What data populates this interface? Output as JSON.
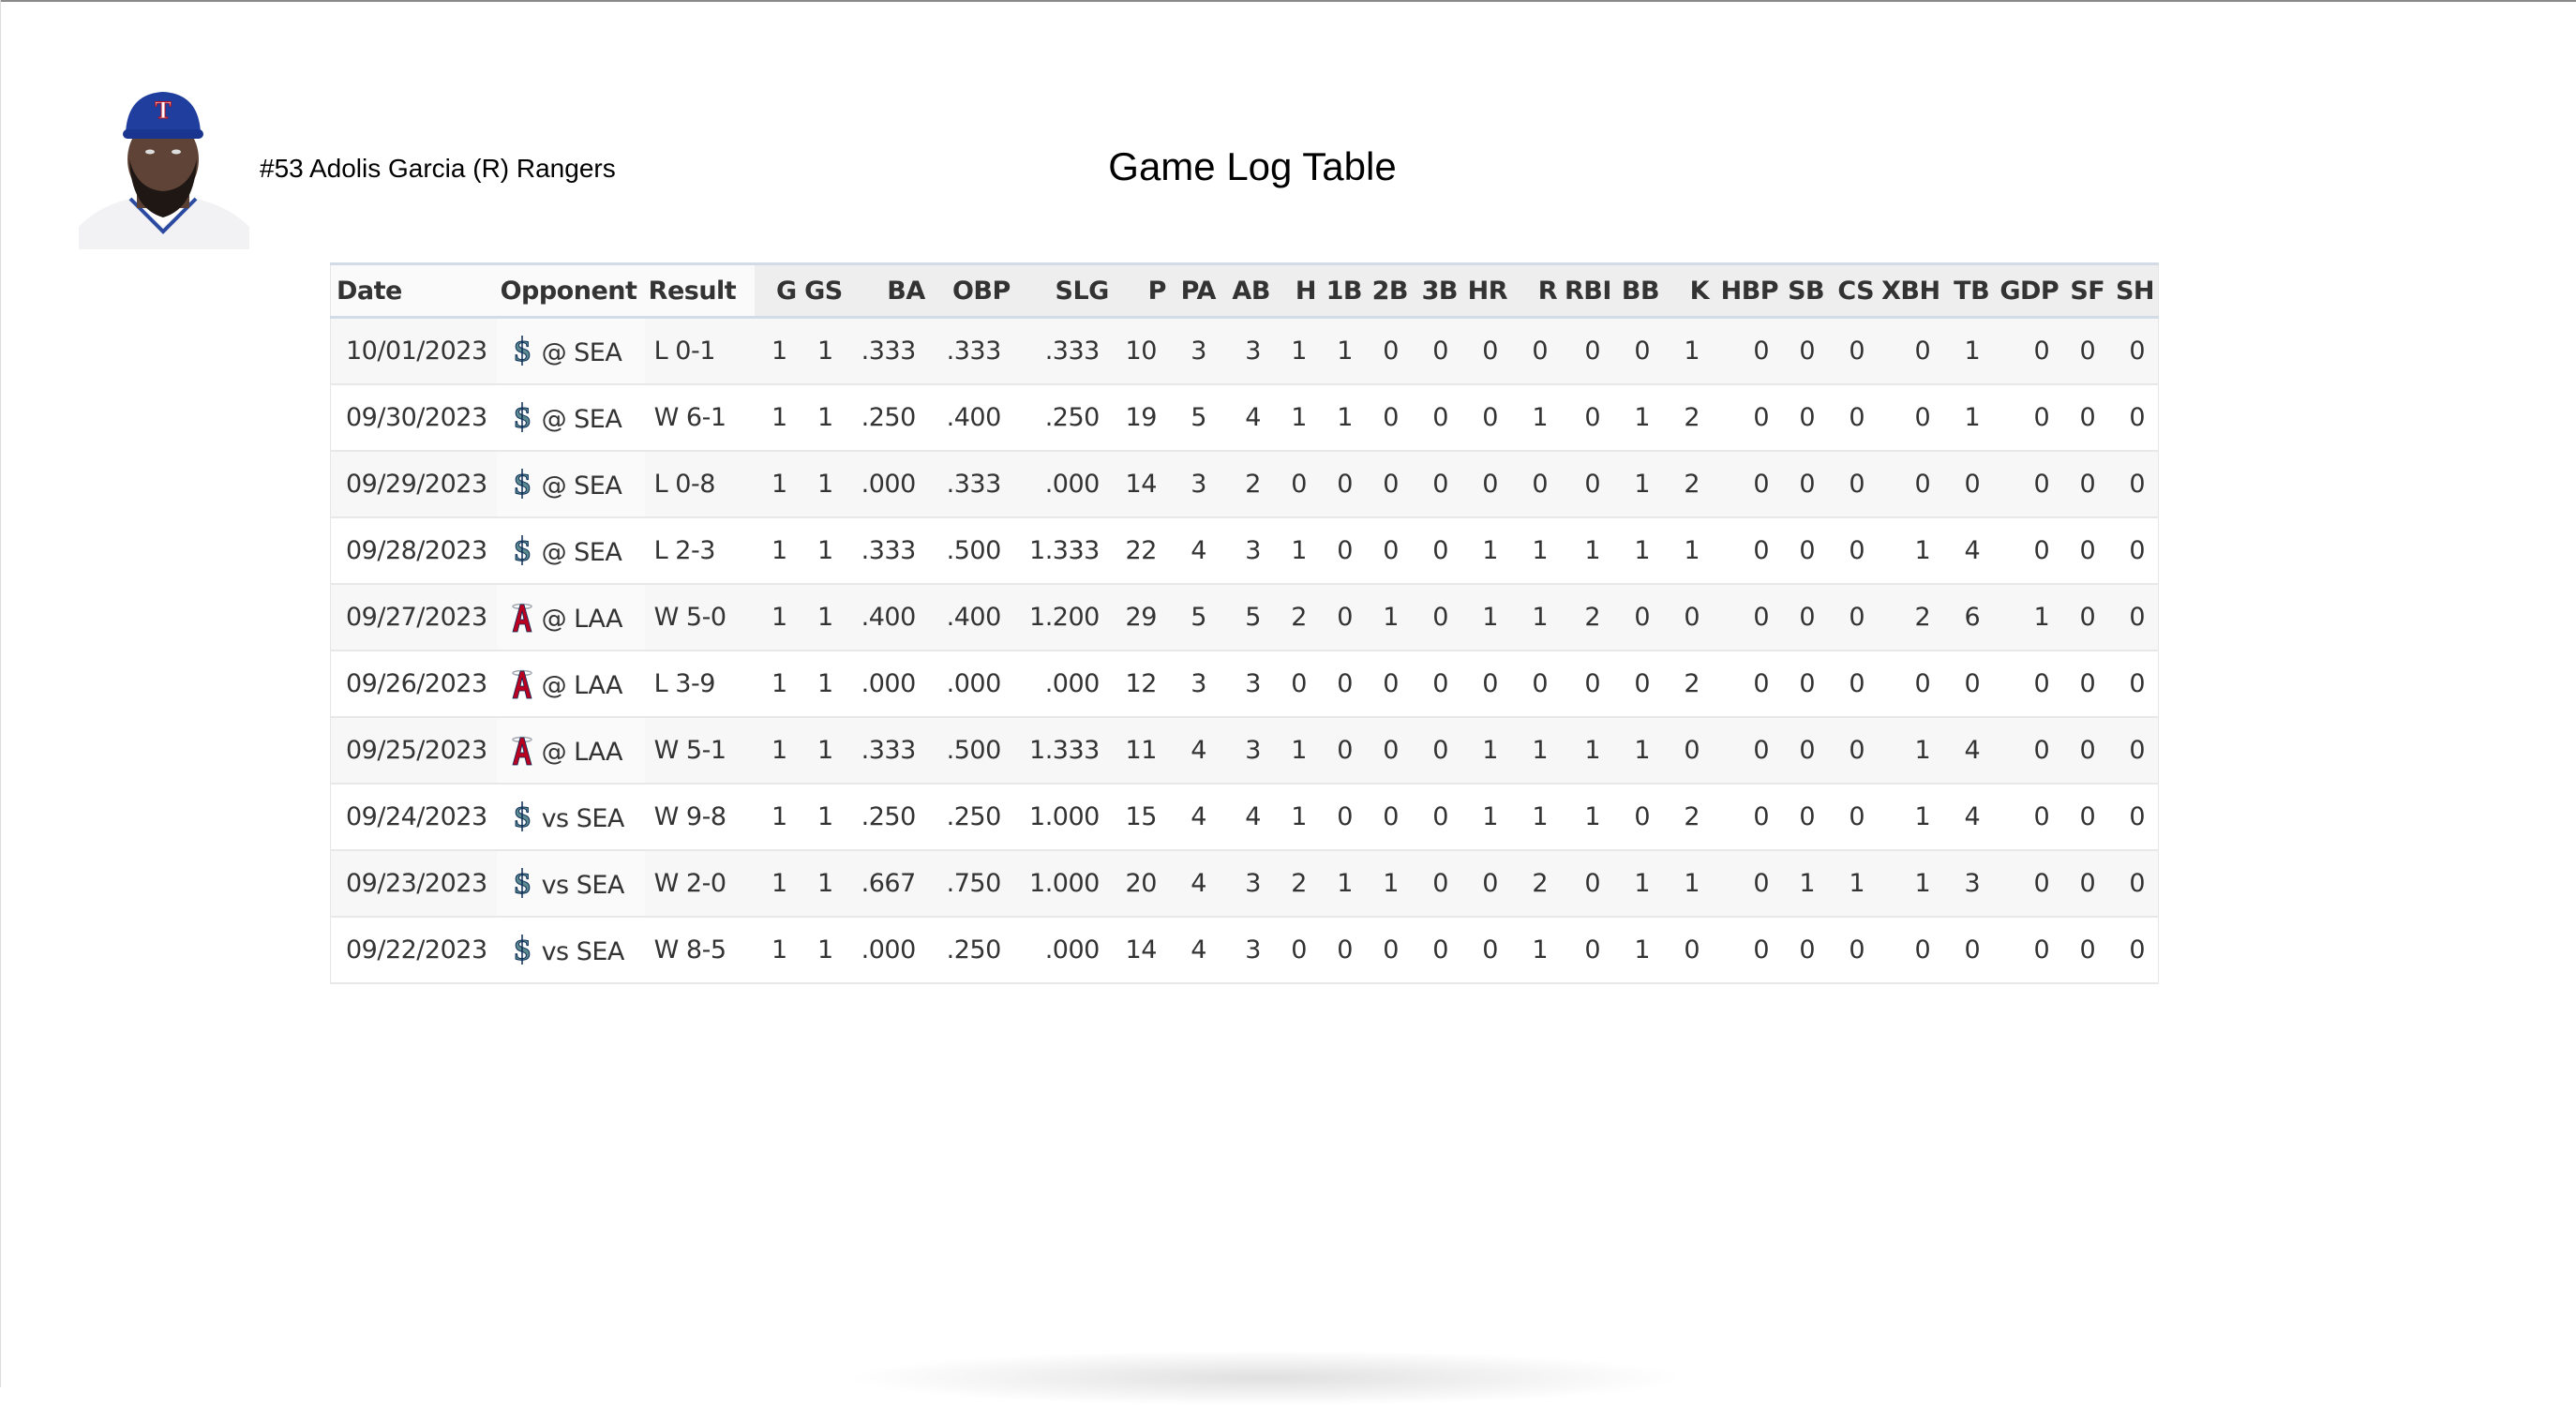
{
  "header": {
    "player_label": "#53 Adolis Garcia (R) Rangers",
    "title": "Game Log Table"
  },
  "colors": {
    "rangers_blue": "#1f3e9e",
    "mariners_teal": "#5a8a8f",
    "mariners_navy": "#0c2c56",
    "angels_red": "#ba0021"
  },
  "table": {
    "columns": [
      "Date",
      "Opponent",
      "Result",
      "G",
      "GS",
      "BA",
      "OBP",
      "SLG",
      "P",
      "PA",
      "AB",
      "H",
      "1B",
      "2B",
      "3B",
      "HR",
      "R",
      "RBI",
      "BB",
      "K",
      "HBP",
      "SB",
      "CS",
      "XBH",
      "TB",
      "GDP",
      "SF",
      "SH"
    ],
    "rows": [
      {
        "date": "10/01/2023",
        "logo": "mariners-logo",
        "opp": "@ SEA",
        "result": "L 0-1",
        "stats": [
          "1",
          "1",
          ".333",
          ".333",
          ".333",
          "10",
          "3",
          "3",
          "1",
          "1",
          "0",
          "0",
          "0",
          "0",
          "0",
          "0",
          "1",
          "0",
          "0",
          "0",
          "0",
          "1",
          "0",
          "0",
          "0"
        ]
      },
      {
        "date": "09/30/2023",
        "logo": "mariners-logo",
        "opp": "@ SEA",
        "result": "W 6-1",
        "stats": [
          "1",
          "1",
          ".250",
          ".400",
          ".250",
          "19",
          "5",
          "4",
          "1",
          "1",
          "0",
          "0",
          "0",
          "1",
          "0",
          "1",
          "2",
          "0",
          "0",
          "0",
          "0",
          "1",
          "0",
          "0",
          "0"
        ]
      },
      {
        "date": "09/29/2023",
        "logo": "mariners-logo",
        "opp": "@ SEA",
        "result": "L 0-8",
        "stats": [
          "1",
          "1",
          ".000",
          ".333",
          ".000",
          "14",
          "3",
          "2",
          "0",
          "0",
          "0",
          "0",
          "0",
          "0",
          "0",
          "1",
          "2",
          "0",
          "0",
          "0",
          "0",
          "0",
          "0",
          "0",
          "0"
        ]
      },
      {
        "date": "09/28/2023",
        "logo": "mariners-logo",
        "opp": "@ SEA",
        "result": "L 2-3",
        "stats": [
          "1",
          "1",
          ".333",
          ".500",
          "1.333",
          "22",
          "4",
          "3",
          "1",
          "0",
          "0",
          "0",
          "1",
          "1",
          "1",
          "1",
          "1",
          "0",
          "0",
          "0",
          "1",
          "4",
          "0",
          "0",
          "0"
        ]
      },
      {
        "date": "09/27/2023",
        "logo": "angels-logo",
        "opp": "@ LAA",
        "result": "W 5-0",
        "stats": [
          "1",
          "1",
          ".400",
          ".400",
          "1.200",
          "29",
          "5",
          "5",
          "2",
          "0",
          "1",
          "0",
          "1",
          "1",
          "2",
          "0",
          "0",
          "0",
          "0",
          "0",
          "2",
          "6",
          "1",
          "0",
          "0"
        ]
      },
      {
        "date": "09/26/2023",
        "logo": "angels-logo",
        "opp": "@ LAA",
        "result": "L 3-9",
        "stats": [
          "1",
          "1",
          ".000",
          ".000",
          ".000",
          "12",
          "3",
          "3",
          "0",
          "0",
          "0",
          "0",
          "0",
          "0",
          "0",
          "0",
          "2",
          "0",
          "0",
          "0",
          "0",
          "0",
          "0",
          "0",
          "0"
        ]
      },
      {
        "date": "09/25/2023",
        "logo": "angels-logo",
        "opp": "@ LAA",
        "result": "W 5-1",
        "stats": [
          "1",
          "1",
          ".333",
          ".500",
          "1.333",
          "11",
          "4",
          "3",
          "1",
          "0",
          "0",
          "0",
          "1",
          "1",
          "1",
          "1",
          "0",
          "0",
          "0",
          "0",
          "1",
          "4",
          "0",
          "0",
          "0"
        ]
      },
      {
        "date": "09/24/2023",
        "logo": "mariners-logo",
        "opp": "vs SEA",
        "result": "W 9-8",
        "stats": [
          "1",
          "1",
          ".250",
          ".250",
          "1.000",
          "15",
          "4",
          "4",
          "1",
          "0",
          "0",
          "0",
          "1",
          "1",
          "1",
          "0",
          "2",
          "0",
          "0",
          "0",
          "1",
          "4",
          "0",
          "0",
          "0"
        ]
      },
      {
        "date": "09/23/2023",
        "logo": "mariners-logo",
        "opp": "vs SEA",
        "result": "W 2-0",
        "stats": [
          "1",
          "1",
          ".667",
          ".750",
          "1.000",
          "20",
          "4",
          "3",
          "2",
          "1",
          "1",
          "0",
          "0",
          "2",
          "0",
          "1",
          "1",
          "0",
          "1",
          "1",
          "1",
          "3",
          "0",
          "0",
          "0"
        ]
      },
      {
        "date": "09/22/2023",
        "logo": "mariners-logo",
        "opp": "vs SEA",
        "result": "W 8-5",
        "stats": [
          "1",
          "1",
          ".000",
          ".250",
          ".000",
          "14",
          "4",
          "3",
          "0",
          "0",
          "0",
          "0",
          "0",
          "1",
          "0",
          "1",
          "0",
          "0",
          "0",
          "0",
          "0",
          "0",
          "0",
          "0",
          "0"
        ]
      }
    ]
  }
}
